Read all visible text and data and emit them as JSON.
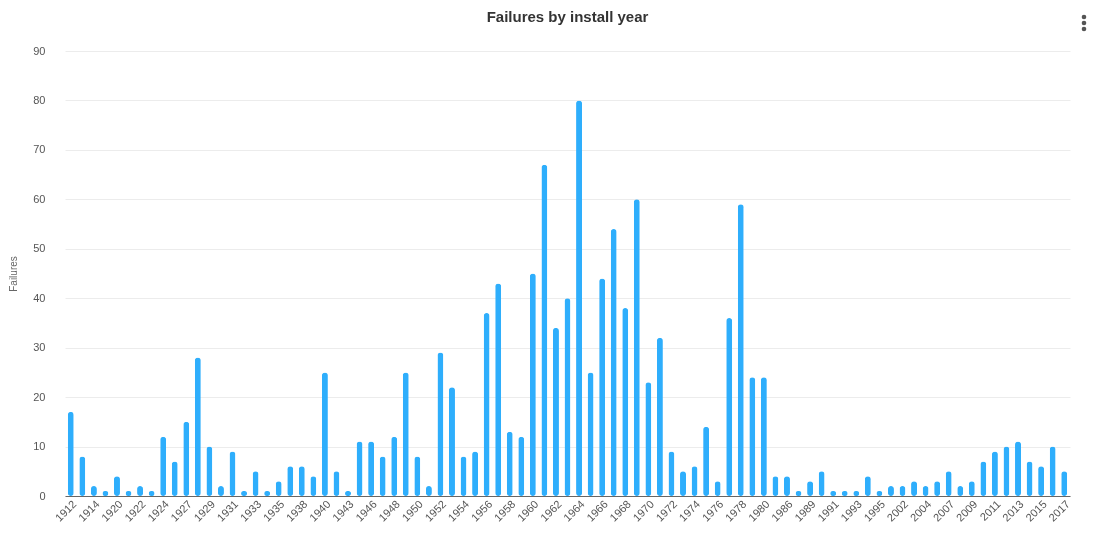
{
  "chart_data": {
    "type": "bar",
    "title": "Failures by install year",
    "ylabel": "Failures",
    "categories": [
      "1912",
      null,
      "1914",
      null,
      "1920",
      null,
      "1922",
      null,
      "1924",
      null,
      "1927",
      null,
      "1929",
      null,
      "1931",
      null,
      "1933",
      null,
      "1935",
      null,
      "1938",
      null,
      "1940",
      null,
      "1943",
      null,
      "1946",
      null,
      "1948",
      null,
      "1950",
      null,
      "1952",
      null,
      "1954",
      null,
      "1956",
      null,
      "1958",
      null,
      "1960",
      null,
      "1962",
      null,
      "1964",
      null,
      "1966",
      null,
      "1968",
      null,
      "1970",
      null,
      "1972",
      null,
      "1974",
      null,
      "1976",
      null,
      "1978",
      null,
      "1980",
      null,
      "1986",
      null,
      "1989",
      null,
      "1991",
      null,
      "1993",
      null,
      "1995",
      null,
      "2002",
      null,
      "2004",
      null,
      "2007",
      null,
      "2009",
      null,
      "2011",
      null,
      "2013",
      null,
      "2015",
      null,
      "2017"
    ],
    "values": [
      17,
      8,
      2,
      1,
      4,
      1,
      2,
      1,
      12,
      7,
      15,
      28,
      10,
      2,
      9,
      1,
      5,
      1,
      3,
      6,
      6,
      4,
      25,
      5,
      1,
      11,
      11,
      8,
      12,
      25,
      8,
      2,
      29,
      22,
      8,
      9,
      37,
      43,
      13,
      12,
      45,
      67,
      34,
      40,
      80,
      25,
      44,
      54,
      38,
      60,
      23,
      32,
      9,
      5,
      6,
      14,
      3,
      36,
      59,
      24,
      24,
      4,
      4,
      1,
      3,
      5,
      1,
      1,
      1,
      4,
      1,
      2,
      2,
      3,
      2,
      3,
      5,
      2,
      3,
      7,
      9,
      10,
      11,
      7,
      6,
      10,
      5
    ],
    "color": "#2eaefc",
    "ylim": [
      0,
      90
    ],
    "yticks": [
      0,
      10,
      20,
      30,
      40,
      50,
      60,
      70,
      80,
      90
    ],
    "grid": "y"
  }
}
